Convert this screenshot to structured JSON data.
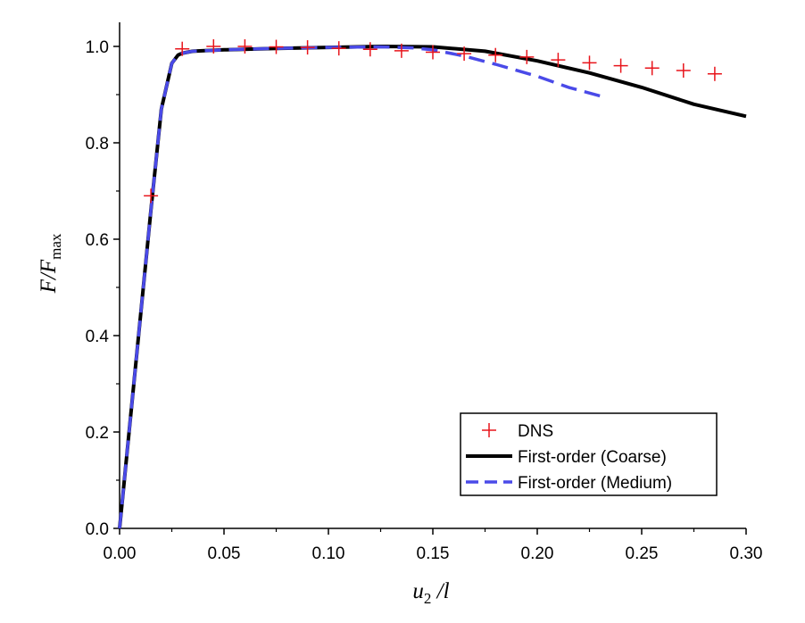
{
  "chart_data": {
    "type": "line",
    "title": "",
    "xlabel": {
      "symbol": "u",
      "subscript": "2",
      "suffix": " /l"
    },
    "ylabel": {
      "symbol": "F/F",
      "subscript": "max"
    },
    "xlim": [
      0.0,
      0.3
    ],
    "ylim": [
      0.0,
      1.05
    ],
    "x_ticks": [
      {
        "value": 0.0,
        "label": "0.00"
      },
      {
        "value": 0.05,
        "label": "0.05"
      },
      {
        "value": 0.1,
        "label": "0.10"
      },
      {
        "value": 0.15,
        "label": "0.15"
      },
      {
        "value": 0.2,
        "label": "0.20"
      },
      {
        "value": 0.25,
        "label": "0.25"
      },
      {
        "value": 0.3,
        "label": "0.30"
      }
    ],
    "y_ticks": [
      {
        "value": 0.0,
        "label": "0.0"
      },
      {
        "value": 0.2,
        "label": "0.2"
      },
      {
        "value": 0.4,
        "label": "0.4"
      },
      {
        "value": 0.6,
        "label": "0.6"
      },
      {
        "value": 0.8,
        "label": "0.8"
      },
      {
        "value": 1.0,
        "label": "1.0"
      }
    ],
    "grid": false,
    "legend_position": "bottom-right",
    "series": [
      {
        "name": "DNS",
        "style": "markers",
        "marker": "plus",
        "color": "#e8141b",
        "x": [
          0.015,
          0.03,
          0.045,
          0.06,
          0.075,
          0.09,
          0.105,
          0.12,
          0.135,
          0.15,
          0.165,
          0.18,
          0.195,
          0.21,
          0.225,
          0.24,
          0.255,
          0.27,
          0.285
        ],
        "y": [
          0.69,
          0.995,
          1.0,
          1.0,
          0.999,
          0.998,
          0.996,
          0.994,
          0.991,
          0.988,
          0.985,
          0.982,
          0.978,
          0.972,
          0.966,
          0.96,
          0.955,
          0.95,
          0.943
        ]
      },
      {
        "name": "First-order (Coarse)",
        "style": "solid",
        "color": "#000000",
        "x": [
          0.0,
          0.005,
          0.01,
          0.015,
          0.02,
          0.025,
          0.028,
          0.03,
          0.035,
          0.05,
          0.075,
          0.1,
          0.125,
          0.15,
          0.175,
          0.2,
          0.225,
          0.25,
          0.275,
          0.3
        ],
        "y": [
          0.0,
          0.22,
          0.44,
          0.66,
          0.87,
          0.965,
          0.982,
          0.986,
          0.99,
          0.993,
          0.996,
          0.998,
          1.0,
          0.999,
          0.99,
          0.97,
          0.945,
          0.915,
          0.88,
          0.855
        ]
      },
      {
        "name": "First-order (Medium)",
        "style": "dashed",
        "color": "#4a4ae8",
        "x": [
          0.0,
          0.005,
          0.01,
          0.015,
          0.02,
          0.025,
          0.028,
          0.03,
          0.035,
          0.05,
          0.075,
          0.1,
          0.125,
          0.14,
          0.15,
          0.165,
          0.18,
          0.2,
          0.215,
          0.232
        ],
        "y": [
          0.0,
          0.22,
          0.44,
          0.66,
          0.87,
          0.965,
          0.982,
          0.986,
          0.99,
          0.993,
          0.996,
          0.998,
          0.999,
          0.997,
          0.993,
          0.98,
          0.963,
          0.938,
          0.915,
          0.895
        ]
      }
    ]
  }
}
